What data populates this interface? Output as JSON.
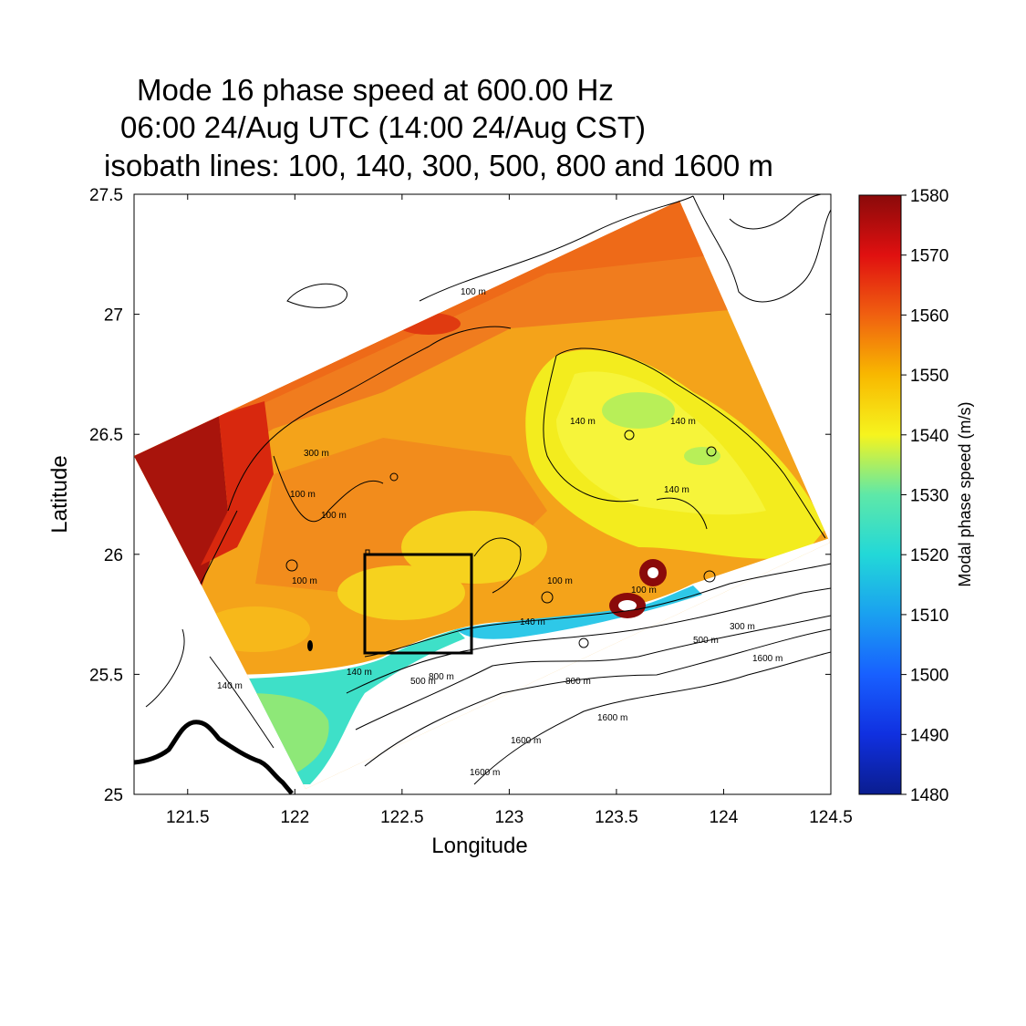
{
  "titles": {
    "line1": "Mode 16 phase speed at 600.00 Hz",
    "line2": "06:00 24/Aug UTC (14:00 24/Aug CST)",
    "line3": "isobath lines: 100, 140, 300, 500, 800 and 1600 m"
  },
  "axes": {
    "xlabel": "Longitude",
    "ylabel": "Latitude",
    "xlim": [
      121.25,
      124.5
    ],
    "ylim": [
      25,
      27.5
    ],
    "xticks": [
      "121.5",
      "122",
      "122.5",
      "123",
      "123.5",
      "124",
      "124.5"
    ],
    "yticks": [
      "25",
      "25.5",
      "26",
      "26.5",
      "27",
      "27.5"
    ]
  },
  "colorbar": {
    "label": "Modal phase speed (m/s)",
    "ticks": [
      "1480",
      "1490",
      "1500",
      "1510",
      "1520",
      "1530",
      "1540",
      "1550",
      "1560",
      "1570",
      "1580"
    ],
    "range": [
      1480,
      1580
    ]
  },
  "isobath_labels": {
    "l100": "100 m",
    "l140": "140 m",
    "l300": "300 m",
    "l500": "500 m",
    "l800": "800 m",
    "l1600": "1600 m"
  },
  "study_box": {
    "lon": [
      122.33,
      122.83
    ],
    "lat": [
      25.58,
      26.0
    ]
  },
  "chart_data": {
    "type": "heatmap",
    "title": "Mode 16 phase speed at 600.00 Hz",
    "xlabel": "Longitude",
    "ylabel": "Latitude",
    "xlim": [
      121.25,
      124.5
    ],
    "ylim": [
      25,
      27.5
    ],
    "colorbar_label": "Modal phase speed (m/s)",
    "value_range": [
      1480,
      1580
    ],
    "contour_levels_m": [
      100,
      140,
      300,
      500,
      800,
      1600
    ]
  },
  "colors": {
    "c1480": "#0a1d8f",
    "c1490": "#1030e0",
    "c1500": "#1860ff",
    "c1510": "#1aa0f0",
    "c1520": "#22d8d8",
    "c1530": "#5ee8a8",
    "c1540": "#f6f41e",
    "c1550": "#f8b800",
    "c1560": "#f06010",
    "c1570": "#e01010",
    "c1580": "#8a0a0a"
  }
}
